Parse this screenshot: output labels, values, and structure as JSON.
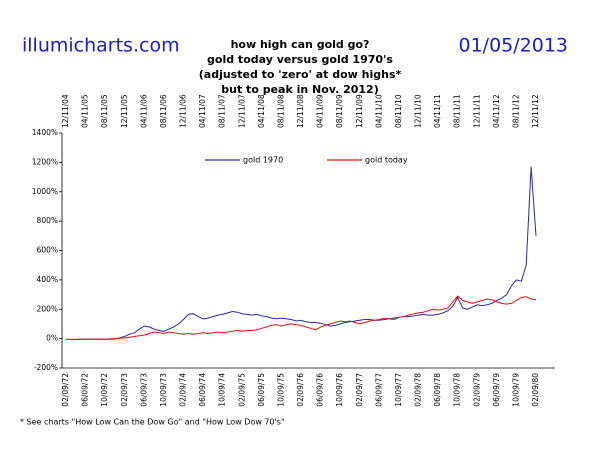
{
  "chart_data": {
    "type": "line",
    "site": "illumicharts.com",
    "date": "01/05/2013",
    "title": [
      "how high can gold go?",
      "gold today versus gold 1970's",
      "(adjusted to 'zero' at dow highs*",
      "but to peak in Nov. 2012)"
    ],
    "footnote": "* See charts \"How Low Can the Dow Go\" and \"How Low Dow 70's\"",
    "categories": [
      "02/09/72",
      null,
      null,
      null,
      "06/09/72",
      null,
      null,
      null,
      "10/09/72",
      null,
      null,
      null,
      "02/09/73",
      null,
      null,
      null,
      "06/09/73",
      null,
      null,
      null,
      "10/09/73",
      null,
      null,
      null,
      "02/09/74",
      null,
      null,
      null,
      "06/09/74",
      null,
      null,
      null,
      "10/09/74",
      null,
      null,
      null,
      "02/09/75",
      null,
      null,
      null,
      "06/09/75",
      null,
      null,
      null,
      "10/09/75",
      null,
      null,
      null,
      "02/09/76",
      null,
      null,
      null,
      "06/09/76",
      null,
      null,
      null,
      "10/09/76",
      null,
      null,
      null,
      "02/09/77",
      null,
      null,
      null,
      "06/09/77",
      null,
      null,
      null,
      "10/09/77",
      null,
      null,
      null,
      "02/09/78",
      null,
      null,
      null,
      "06/09/78",
      null,
      null,
      null,
      "10/09/78",
      null,
      null,
      null,
      "02/09/79",
      null,
      null,
      null,
      "06/09/79",
      null,
      null,
      null,
      "10/09/79",
      null,
      null,
      null,
      "02/09/80"
    ],
    "top_categories": [
      "12/11/04",
      null,
      null,
      null,
      "04/11/05",
      null,
      null,
      null,
      "08/11/05",
      null,
      null,
      null,
      "12/11/05",
      null,
      null,
      null,
      "04/11/06",
      null,
      null,
      null,
      "08/11/06",
      null,
      null,
      null,
      "12/11/06",
      null,
      null,
      null,
      "04/11/07",
      null,
      null,
      null,
      "08/11/07",
      null,
      null,
      null,
      "12/11/07",
      null,
      null,
      null,
      "04/11/08",
      null,
      null,
      null,
      "08/11/08",
      null,
      null,
      null,
      "12/11/08",
      null,
      null,
      null,
      "04/11/09",
      null,
      null,
      null,
      "08/11/09",
      null,
      null,
      null,
      "12/11/09",
      null,
      null,
      null,
      "04/11/10",
      null,
      null,
      null,
      "08/11/10",
      null,
      null,
      null,
      "12/11/10",
      null,
      null,
      null,
      "04/11/11",
      null,
      null,
      null,
      "08/11/11",
      null,
      null,
      null,
      "12/11/11",
      null,
      null,
      null,
      "04/11/12",
      null,
      null,
      null,
      "08/11/12",
      null,
      null,
      null,
      "12/11/12"
    ],
    "series": [
      {
        "name": "gold 1970",
        "color": "#2a2aa0",
        "values": [
          -5,
          -5,
          -6,
          -4,
          -3,
          -4,
          -3,
          -4,
          -5,
          -4,
          -2,
          5,
          15,
          30,
          40,
          65,
          85,
          80,
          65,
          55,
          50,
          65,
          80,
          100,
          130,
          165,
          170,
          150,
          135,
          140,
          150,
          160,
          165,
          175,
          185,
          180,
          170,
          165,
          160,
          165,
          155,
          150,
          140,
          135,
          140,
          135,
          130,
          120,
          125,
          115,
          110,
          110,
          105,
          95,
          85,
          90,
          100,
          110,
          115,
          120,
          125,
          130,
          130,
          125,
          125,
          130,
          135,
          140,
          145,
          150,
          150,
          155,
          160,
          165,
          160,
          160,
          165,
          175,
          190,
          220,
          280,
          210,
          200,
          215,
          230,
          225,
          230,
          240,
          260,
          275,
          300,
          360,
          400,
          390,
          500,
          1170,
          700
        ]
      },
      {
        "name": "gold today",
        "color": "#e81010",
        "values": [
          -5,
          -6,
          -5,
          -4,
          -5,
          -4,
          -3,
          -4,
          -3,
          -2,
          0,
          2,
          5,
          10,
          15,
          20,
          25,
          35,
          45,
          40,
          35,
          45,
          40,
          35,
          30,
          35,
          30,
          35,
          40,
          35,
          40,
          45,
          40,
          45,
          50,
          55,
          50,
          55,
          55,
          60,
          70,
          80,
          90,
          95,
          85,
          95,
          100,
          95,
          90,
          80,
          70,
          60,
          80,
          90,
          100,
          110,
          120,
          115,
          120,
          110,
          100,
          110,
          120,
          125,
          130,
          140,
          135,
          130,
          145,
          150,
          160,
          170,
          175,
          180,
          190,
          200,
          195,
          200,
          210,
          250,
          290,
          260,
          250,
          240,
          250,
          260,
          270,
          265,
          250,
          240,
          235,
          240,
          260,
          280,
          285,
          270,
          265
        ]
      }
    ],
    "ylim": [
      -200,
      1400
    ],
    "yticks": [
      {
        "value": -200,
        "label": "-200%"
      },
      {
        "value": 0,
        "label": "0%"
      },
      {
        "value": 200,
        "label": "200%"
      },
      {
        "value": 400,
        "label": "400%"
      },
      {
        "value": 600,
        "label": "600%"
      },
      {
        "value": 800,
        "label": "800%"
      },
      {
        "value": 1000,
        "label": "1000%"
      },
      {
        "value": 1200,
        "label": "1200%"
      },
      {
        "value": 1400,
        "label": "1400%"
      }
    ],
    "legend": "top",
    "grid": false
  }
}
